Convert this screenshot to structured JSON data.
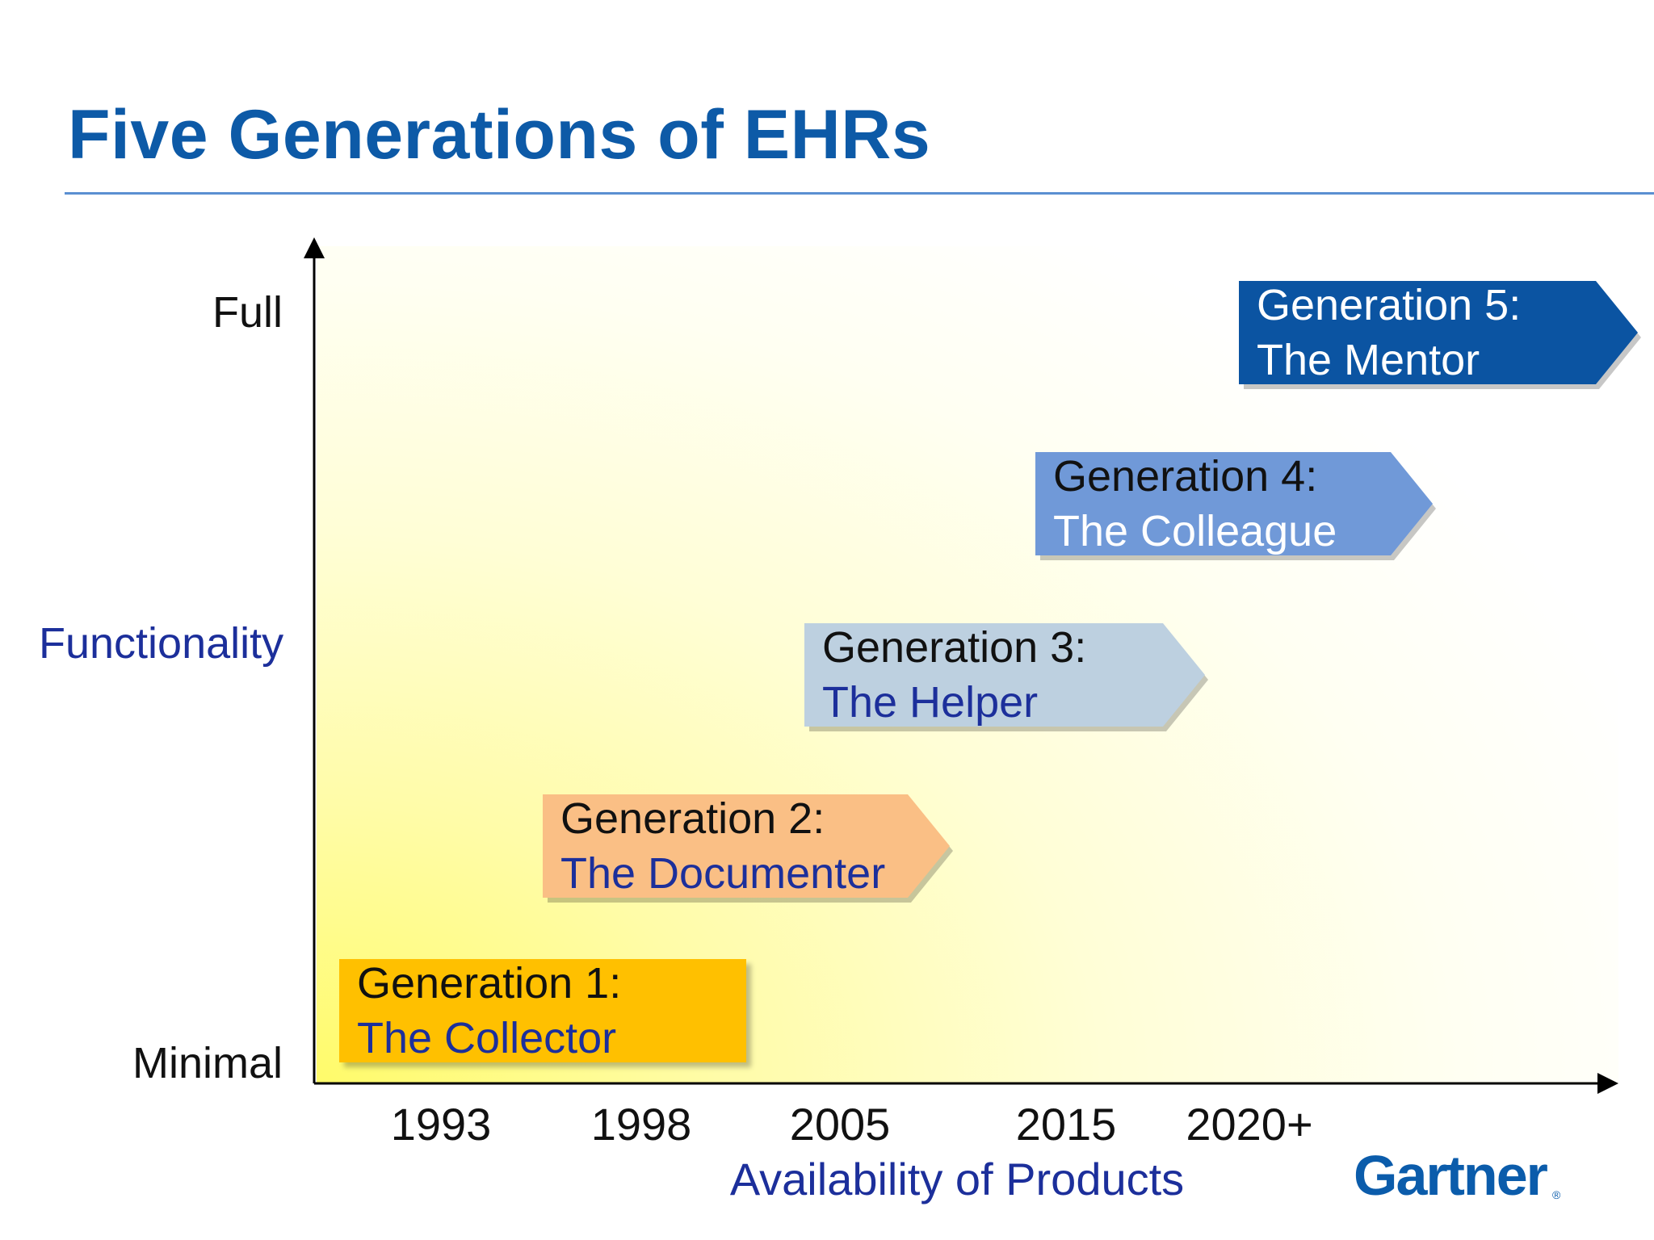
{
  "title": "Five Generations of EHRs",
  "y_axis": {
    "label": "Functionality",
    "top_label": "Full",
    "bottom_label": "Minimal"
  },
  "x_axis": {
    "label": "Availability of Products",
    "ticks": [
      "1993",
      "1998",
      "2005",
      "2015",
      "2020+"
    ]
  },
  "generations": [
    {
      "line1": "Generation 1:",
      "line2": "The Collector",
      "fill": "#ffc000",
      "line1_color": "#111111",
      "line2_color": "#1c2f9b",
      "shape": "rect"
    },
    {
      "line1": "Generation 2:",
      "line2": "The Documenter",
      "fill": "#fabf85",
      "line1_color": "#111111",
      "line2_color": "#1c2f9b",
      "shape": "arrow"
    },
    {
      "line1": "Generation 3:",
      "line2": "The Helper",
      "fill": "#bdd0e0",
      "line1_color": "#111111",
      "line2_color": "#1c2f9b",
      "shape": "arrow"
    },
    {
      "line1": "Generation 4:",
      "line2": "The Colleague",
      "fill": "#7099d8",
      "line1_color": "#111111",
      "line2_color": "#ffffff",
      "shape": "arrow"
    },
    {
      "line1": "Generation 5:",
      "line2": "The Mentor",
      "fill": "#0b54a2",
      "line1_color": "#ffffff",
      "line2_color": "#ffffff",
      "shape": "arrow"
    }
  ],
  "logo": {
    "text": "Gartner",
    "registered": "®"
  },
  "colors": {
    "title": "#0d5aa7",
    "axis_label": "#1c2f9b",
    "rule": "#5b8fd1"
  }
}
